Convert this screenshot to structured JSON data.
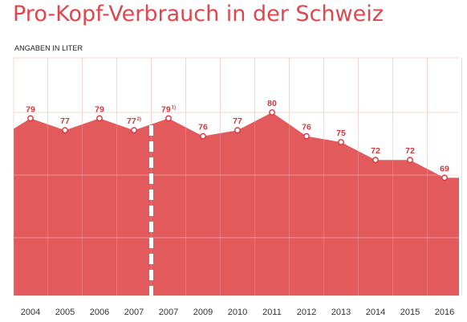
{
  "title": "Pro-Kopf-Verbrauch in der Schweiz",
  "unit_label": "ANGABEN IN LITER",
  "colors": {
    "area": "#e25a5b",
    "label": "#d9343c",
    "title": "#e0474c",
    "grid": "#f6d4d2",
    "axis_text": "#333333"
  },
  "chart_data": {
    "type": "area",
    "title": "Pro-Kopf-Verbrauch in der Schweiz",
    "ylabel": "ANGABEN IN LITER",
    "categories": [
      "2004",
      "2005",
      "2006",
      "2007",
      "2007",
      "2009",
      "2010",
      "2011",
      "2012",
      "2013",
      "2014",
      "2015",
      "2016"
    ],
    "values": [
      79,
      77,
      79,
      77,
      79,
      76,
      77,
      80,
      76,
      75,
      72,
      72,
      69
    ],
    "data_labels": [
      "79",
      "77",
      "79",
      "77",
      "79",
      "76",
      "77",
      "80",
      "76",
      "75",
      "72",
      "72",
      "69"
    ],
    "footnote_marks": [
      "",
      "",
      "",
      "2)",
      "1)",
      "",
      "",
      "",
      "",
      "",
      "",
      "",
      ""
    ],
    "series_break_after_index": 3,
    "grid": true,
    "legend": "none"
  }
}
